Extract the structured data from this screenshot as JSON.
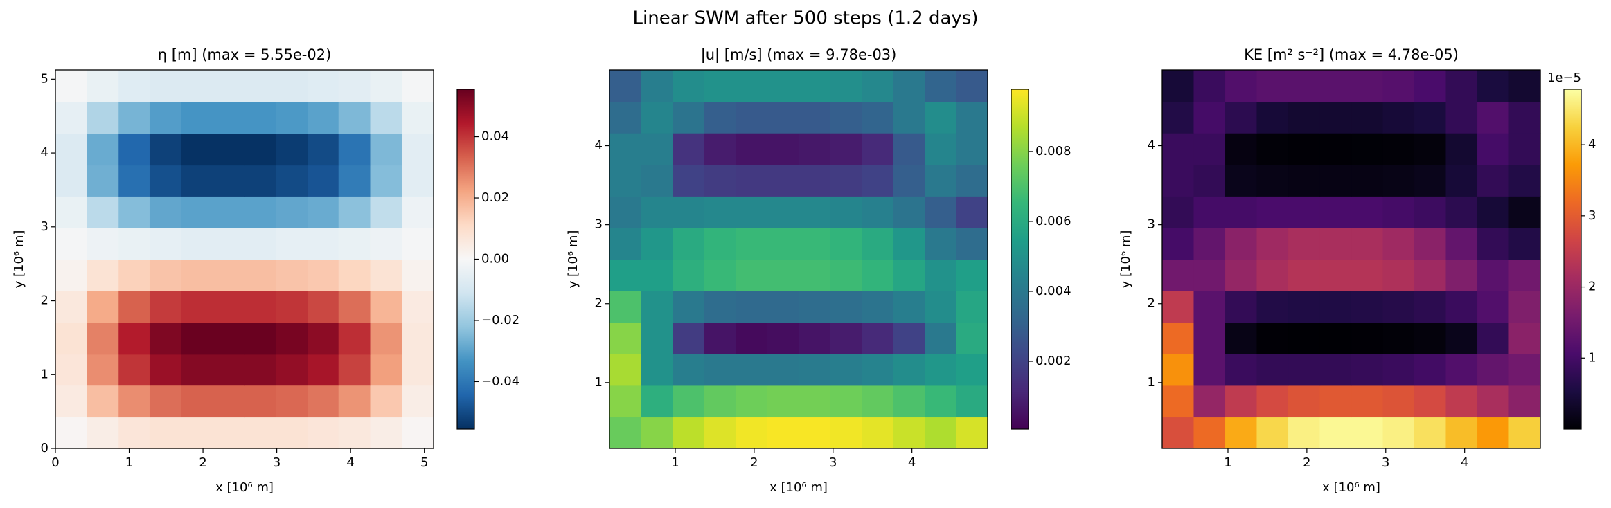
{
  "title": "Linear SWM after 500 steps (1.2 days)",
  "chart_data": [
    {
      "type": "heatmap",
      "title": "η [m] (max = 5.55e-02)",
      "xlabel": "x [10⁶ m]",
      "ylabel": "y [10⁶ m]",
      "cmap": "RdBu_r",
      "xlim": [
        0,
        5.125
      ],
      "ylim": [
        0,
        5.125
      ],
      "xticks": [
        0,
        1,
        2,
        3,
        4,
        5
      ],
      "yticks": [
        0,
        1,
        2,
        3,
        4,
        5
      ],
      "clim": [
        -0.0555,
        0.0555
      ],
      "cticks": [
        {
          "value": -0.04,
          "label": "−0.04"
        },
        {
          "value": -0.02,
          "label": "−0.02"
        },
        {
          "value": 0,
          "label": "0.00"
        },
        0.02,
        0.04
      ],
      "x": [
        0.21,
        0.64,
        1.07,
        1.49,
        1.92,
        2.35,
        2.77,
        3.2,
        3.63,
        4.05,
        4.48,
        4.91
      ],
      "y": [
        0.21,
        0.64,
        1.07,
        1.49,
        1.92,
        2.35,
        2.77,
        3.2,
        3.63,
        4.05,
        4.48,
        4.91
      ],
      "z": [
        [
          0.001,
          0.004,
          0.007,
          0.008,
          0.008,
          0.008,
          0.008,
          0.008,
          0.007,
          0.006,
          0.004,
          0.001
        ],
        [
          0.005,
          0.017,
          0.026,
          0.031,
          0.033,
          0.033,
          0.033,
          0.032,
          0.03,
          0.025,
          0.015,
          0.004
        ],
        [
          0.007,
          0.026,
          0.04,
          0.048,
          0.051,
          0.051,
          0.051,
          0.049,
          0.046,
          0.038,
          0.023,
          0.006
        ],
        [
          0.008,
          0.028,
          0.044,
          0.052,
          0.055,
          0.055,
          0.055,
          0.053,
          0.05,
          0.041,
          0.025,
          0.006
        ],
        [
          0.006,
          0.021,
          0.033,
          0.039,
          0.041,
          0.041,
          0.041,
          0.04,
          0.037,
          0.031,
          0.019,
          0.005
        ],
        [
          0.002,
          0.008,
          0.013,
          0.016,
          0.017,
          0.017,
          0.017,
          0.016,
          0.015,
          0.012,
          0.008,
          0.002
        ],
        [
          -0.001,
          -0.003,
          -0.004,
          -0.005,
          -0.006,
          -0.006,
          -0.006,
          -0.005,
          -0.005,
          -0.004,
          -0.003,
          -0.001
        ],
        [
          -0.004,
          -0.015,
          -0.024,
          -0.029,
          -0.03,
          -0.03,
          -0.03,
          -0.029,
          -0.028,
          -0.023,
          -0.014,
          -0.003
        ],
        [
          -0.008,
          -0.027,
          -0.042,
          -0.049,
          -0.052,
          -0.052,
          -0.052,
          -0.05,
          -0.048,
          -0.039,
          -0.024,
          -0.006
        ],
        [
          -0.008,
          -0.028,
          -0.044,
          -0.052,
          -0.055,
          -0.055,
          -0.055,
          -0.053,
          -0.05,
          -0.041,
          -0.025,
          -0.006
        ],
        [
          -0.005,
          -0.017,
          -0.026,
          -0.031,
          -0.033,
          -0.033,
          -0.033,
          -0.032,
          -0.03,
          -0.025,
          -0.015,
          -0.004
        ],
        [
          -0.001,
          -0.004,
          -0.007,
          -0.008,
          -0.008,
          -0.008,
          -0.008,
          -0.008,
          -0.007,
          -0.006,
          -0.004,
          -0.001
        ]
      ]
    },
    {
      "type": "heatmap",
      "title": "|u| [m/s] (max = 9.78e-03)",
      "xlabel": "x [10⁶ m]",
      "ylabel": "y [10⁶ m]",
      "cmap": "viridis",
      "xlim": [
        0.166,
        4.96
      ],
      "ylim": [
        0.166,
        4.96
      ],
      "xticks": [
        1,
        2,
        3,
        4
      ],
      "yticks": [
        1,
        2,
        3,
        4
      ],
      "clim": [
        6e-05,
        0.00978
      ],
      "cticks": [
        0.002,
        0.004,
        0.006,
        0.008
      ],
      "x": [
        0.366,
        0.765,
        1.165,
        1.564,
        1.964,
        2.363,
        2.763,
        3.162,
        3.562,
        3.961,
        4.361,
        4.76
      ],
      "y": [
        0.366,
        0.765,
        1.165,
        1.564,
        1.964,
        2.363,
        2.763,
        3.162,
        3.562,
        3.961,
        4.361,
        4.76
      ],
      "z": [
        [
          0.0075,
          0.008,
          0.0088,
          0.0093,
          0.0096,
          0.0097,
          0.0097,
          0.0096,
          0.0094,
          0.009,
          0.0086,
          0.0092
        ],
        [
          0.008,
          0.0062,
          0.007,
          0.0074,
          0.0076,
          0.0077,
          0.0077,
          0.0076,
          0.0074,
          0.007,
          0.0066,
          0.006
        ],
        [
          0.0085,
          0.005,
          0.0042,
          0.004,
          0.004,
          0.004,
          0.0041,
          0.0042,
          0.0044,
          0.0048,
          0.0052,
          0.0055
        ],
        [
          0.008,
          0.005,
          0.0018,
          0.0006,
          0.0003,
          0.0004,
          0.0006,
          0.0008,
          0.0012,
          0.002,
          0.004,
          0.006
        ],
        [
          0.007,
          0.005,
          0.004,
          0.0035,
          0.0034,
          0.0034,
          0.0035,
          0.0036,
          0.0038,
          0.0042,
          0.0048,
          0.0058
        ],
        [
          0.0055,
          0.0055,
          0.0062,
          0.0066,
          0.0068,
          0.0068,
          0.0068,
          0.0067,
          0.0064,
          0.0058,
          0.005,
          0.0055
        ],
        [
          0.0045,
          0.0052,
          0.006,
          0.0064,
          0.0066,
          0.0066,
          0.0066,
          0.0064,
          0.006,
          0.0052,
          0.004,
          0.0035
        ],
        [
          0.004,
          0.0045,
          0.0045,
          0.0046,
          0.0046,
          0.0046,
          0.0046,
          0.0045,
          0.0043,
          0.0038,
          0.003,
          0.002
        ],
        [
          0.0042,
          0.004,
          0.002,
          0.0018,
          0.0017,
          0.0017,
          0.0017,
          0.0018,
          0.002,
          0.003,
          0.004,
          0.0035
        ],
        [
          0.0042,
          0.0042,
          0.0015,
          0.0008,
          0.0006,
          0.0006,
          0.0007,
          0.0008,
          0.0012,
          0.0028,
          0.0045,
          0.004
        ],
        [
          0.0035,
          0.0045,
          0.0038,
          0.003,
          0.0028,
          0.0028,
          0.0028,
          0.003,
          0.0032,
          0.004,
          0.0048,
          0.004
        ],
        [
          0.003,
          0.0042,
          0.0048,
          0.005,
          0.005,
          0.005,
          0.005,
          0.0049,
          0.0046,
          0.004,
          0.0032,
          0.0028
        ]
      ]
    },
    {
      "type": "heatmap",
      "title": "KE [m² s⁻²] (max = 4.78e-05)",
      "xlabel": "x [10⁶ m]",
      "ylabel": "y [10⁶ m]",
      "cmap": "inferno",
      "xlim": [
        0.166,
        4.96
      ],
      "ylim": [
        0.166,
        4.96
      ],
      "xticks": [
        1,
        2,
        3,
        4
      ],
      "yticks": [
        1,
        2,
        3,
        4
      ],
      "clim": [
        0,
        4.78
      ],
      "cticks": [
        1,
        2,
        3,
        4
      ],
      "offset_label": "1e−5",
      "x": [
        0.366,
        0.765,
        1.165,
        1.564,
        1.964,
        2.363,
        2.763,
        3.162,
        3.562,
        3.961,
        4.361,
        4.76
      ],
      "y": [
        0.366,
        0.765,
        1.165,
        1.564,
        1.964,
        2.363,
        2.763,
        3.162,
        3.562,
        3.961,
        4.361,
        4.76
      ],
      "z": [
        [
          2.81,
          3.2,
          3.87,
          4.32,
          4.61,
          4.7,
          4.7,
          4.61,
          4.42,
          4.05,
          3.7,
          4.23
        ],
        [
          3.2,
          1.92,
          2.45,
          2.74,
          2.89,
          2.96,
          2.96,
          2.89,
          2.74,
          2.45,
          2.18,
          1.8
        ],
        [
          3.61,
          1.25,
          0.88,
          0.8,
          0.8,
          0.8,
          0.84,
          0.88,
          0.97,
          1.15,
          1.35,
          1.51
        ],
        [
          3.2,
          1.25,
          0.16,
          0.02,
          0.005,
          0.008,
          0.018,
          0.032,
          0.072,
          0.2,
          0.8,
          1.8
        ],
        [
          2.45,
          1.25,
          0.8,
          0.61,
          0.58,
          0.58,
          0.61,
          0.65,
          0.72,
          0.88,
          1.15,
          1.68
        ],
        [
          1.51,
          1.51,
          1.92,
          2.18,
          2.31,
          2.31,
          2.31,
          2.24,
          2.05,
          1.68,
          1.25,
          1.51
        ],
        [
          1.01,
          1.35,
          1.8,
          2.05,
          2.18,
          2.18,
          2.18,
          2.05,
          1.8,
          1.35,
          0.8,
          0.61
        ],
        [
          0.8,
          1.01,
          1.01,
          1.06,
          1.06,
          1.06,
          1.06,
          1.01,
          0.92,
          0.72,
          0.45,
          0.2
        ],
        [
          0.88,
          0.8,
          0.2,
          0.16,
          0.14,
          0.14,
          0.14,
          0.16,
          0.2,
          0.45,
          0.8,
          0.61
        ],
        [
          0.88,
          0.88,
          0.11,
          0.032,
          0.018,
          0.018,
          0.025,
          0.032,
          0.072,
          0.39,
          1.01,
          0.8
        ],
        [
          0.61,
          1.01,
          0.72,
          0.45,
          0.39,
          0.39,
          0.39,
          0.45,
          0.51,
          0.8,
          1.15,
          0.8
        ],
        [
          0.45,
          0.88,
          1.15,
          1.25,
          1.25,
          1.25,
          1.25,
          1.2,
          1.06,
          0.8,
          0.51,
          0.39
        ]
      ]
    }
  ]
}
